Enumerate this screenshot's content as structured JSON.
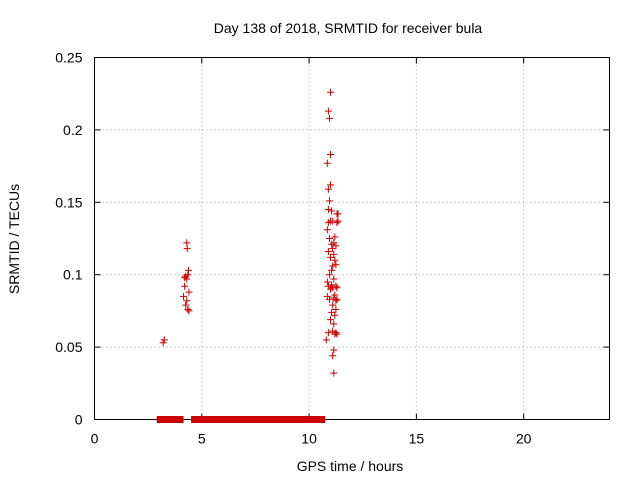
{
  "chart_data": {
    "type": "scatter",
    "title": "Day 138 of 2018, SRMTID for receiver bula",
    "xlabel": "GPS time / hours",
    "ylabel": "SRMTID / TECUs",
    "xlim": [
      0,
      24
    ],
    "ylim": [
      0,
      0.25
    ],
    "x_ticks": [
      "0",
      "5",
      "10",
      "15",
      "20"
    ],
    "y_ticks": [
      "0",
      "0.05",
      "0.1",
      "0.15",
      "0.2",
      "0.25"
    ],
    "grid": true,
    "marker": "plus",
    "series_color": "#cc0000",
    "points": [
      [
        3.2,
        0.053
      ],
      [
        3.25,
        0.055
      ],
      [
        4.15,
        0.085
      ],
      [
        4.2,
        0.092
      ],
      [
        4.2,
        0.098
      ],
      [
        4.25,
        0.079
      ],
      [
        4.25,
        0.099
      ],
      [
        4.3,
        0.082
      ],
      [
        4.3,
        0.097
      ],
      [
        4.3,
        0.122
      ],
      [
        4.32,
        0.118
      ],
      [
        4.35,
        0.076
      ],
      [
        4.35,
        0.1
      ],
      [
        4.38,
        0.103
      ],
      [
        4.4,
        0.075
      ],
      [
        4.4,
        0.088
      ],
      [
        10.8,
        0.055
      ],
      [
        10.85,
        0.085
      ],
      [
        10.85,
        0.095
      ],
      [
        10.85,
        0.131
      ],
      [
        10.85,
        0.177
      ],
      [
        10.9,
        0.06
      ],
      [
        10.9,
        0.092
      ],
      [
        10.9,
        0.116
      ],
      [
        10.9,
        0.136
      ],
      [
        10.9,
        0.145
      ],
      [
        10.9,
        0.159
      ],
      [
        10.9,
        0.213
      ],
      [
        10.95,
        0.083
      ],
      [
        10.95,
        0.1
      ],
      [
        10.95,
        0.125
      ],
      [
        10.95,
        0.151
      ],
      [
        10.95,
        0.208
      ],
      [
        11.0,
        0.069
      ],
      [
        11.0,
        0.09
      ],
      [
        11.0,
        0.112
      ],
      [
        11.0,
        0.137
      ],
      [
        11.0,
        0.162
      ],
      [
        11.0,
        0.183
      ],
      [
        11.0,
        0.226
      ],
      [
        11.05,
        0.074
      ],
      [
        11.05,
        0.093
      ],
      [
        11.05,
        0.103
      ],
      [
        11.05,
        0.121
      ],
      [
        11.05,
        0.144
      ],
      [
        11.1,
        0.044
      ],
      [
        11.1,
        0.061
      ],
      [
        11.1,
        0.079
      ],
      [
        11.1,
        0.091
      ],
      [
        11.1,
        0.106
      ],
      [
        11.1,
        0.118
      ],
      [
        11.1,
        0.137
      ],
      [
        11.15,
        0.032
      ],
      [
        11.15,
        0.048
      ],
      [
        11.15,
        0.066
      ],
      [
        11.15,
        0.084
      ],
      [
        11.15,
        0.097
      ],
      [
        11.15,
        0.114
      ],
      [
        11.15,
        0.122
      ],
      [
        11.2,
        0.059
      ],
      [
        11.2,
        0.072
      ],
      [
        11.2,
        0.086
      ],
      [
        11.2,
        0.11
      ],
      [
        11.2,
        0.126
      ],
      [
        11.25,
        0.06
      ],
      [
        11.25,
        0.076
      ],
      [
        11.25,
        0.082
      ],
      [
        11.25,
        0.092
      ],
      [
        11.25,
        0.107
      ],
      [
        11.25,
        0.12
      ],
      [
        11.3,
        0.059
      ],
      [
        11.3,
        0.083
      ],
      [
        11.3,
        0.091
      ],
      [
        11.3,
        0.136
      ],
      [
        11.3,
        0.142
      ],
      [
        11.35,
        0.137
      ],
      [
        11.35,
        0.142
      ]
    ],
    "zero_runs": [
      [
        2.9,
        4.15
      ],
      [
        4.5,
        10.75
      ]
    ]
  }
}
